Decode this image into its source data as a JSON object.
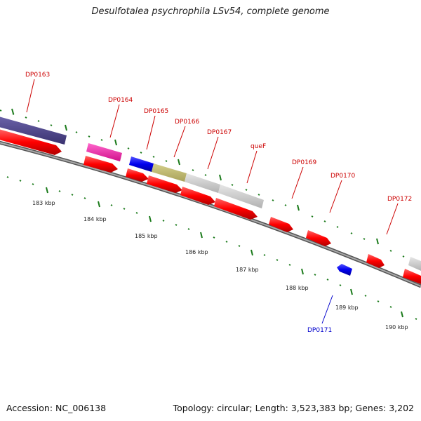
{
  "title": "Desulfotalea psychrophila LSv54, complete genome",
  "footer": {
    "accession": "Accession: NC_006138",
    "summary": "Topology: circular; Length: 3,523,383 bp; Genes: 3,202"
  },
  "colors": {
    "label_red": "#cc0000",
    "label_blue": "#0000cc",
    "backbone": "#888888",
    "tick": "#1a7a1a"
  },
  "scale_labels": [
    "183 kbp",
    "184 kbp",
    "185 kbp",
    "186 kbp",
    "187 kbp",
    "188 kbp",
    "189 kbp",
    "190 kbp"
  ],
  "gene_labels": [
    {
      "text": "DP0163",
      "color": "red"
    },
    {
      "text": "DP0164",
      "color": "red"
    },
    {
      "text": "DP0165",
      "color": "red"
    },
    {
      "text": "DP0166",
      "color": "red"
    },
    {
      "text": "DP0167",
      "color": "red"
    },
    {
      "text": "queF",
      "color": "red"
    },
    {
      "text": "DP0169",
      "color": "red"
    },
    {
      "text": "DP0170",
      "color": "red"
    },
    {
      "text": "DP0172",
      "color": "red"
    },
    {
      "text": "DP0171",
      "color": "blue"
    }
  ]
}
